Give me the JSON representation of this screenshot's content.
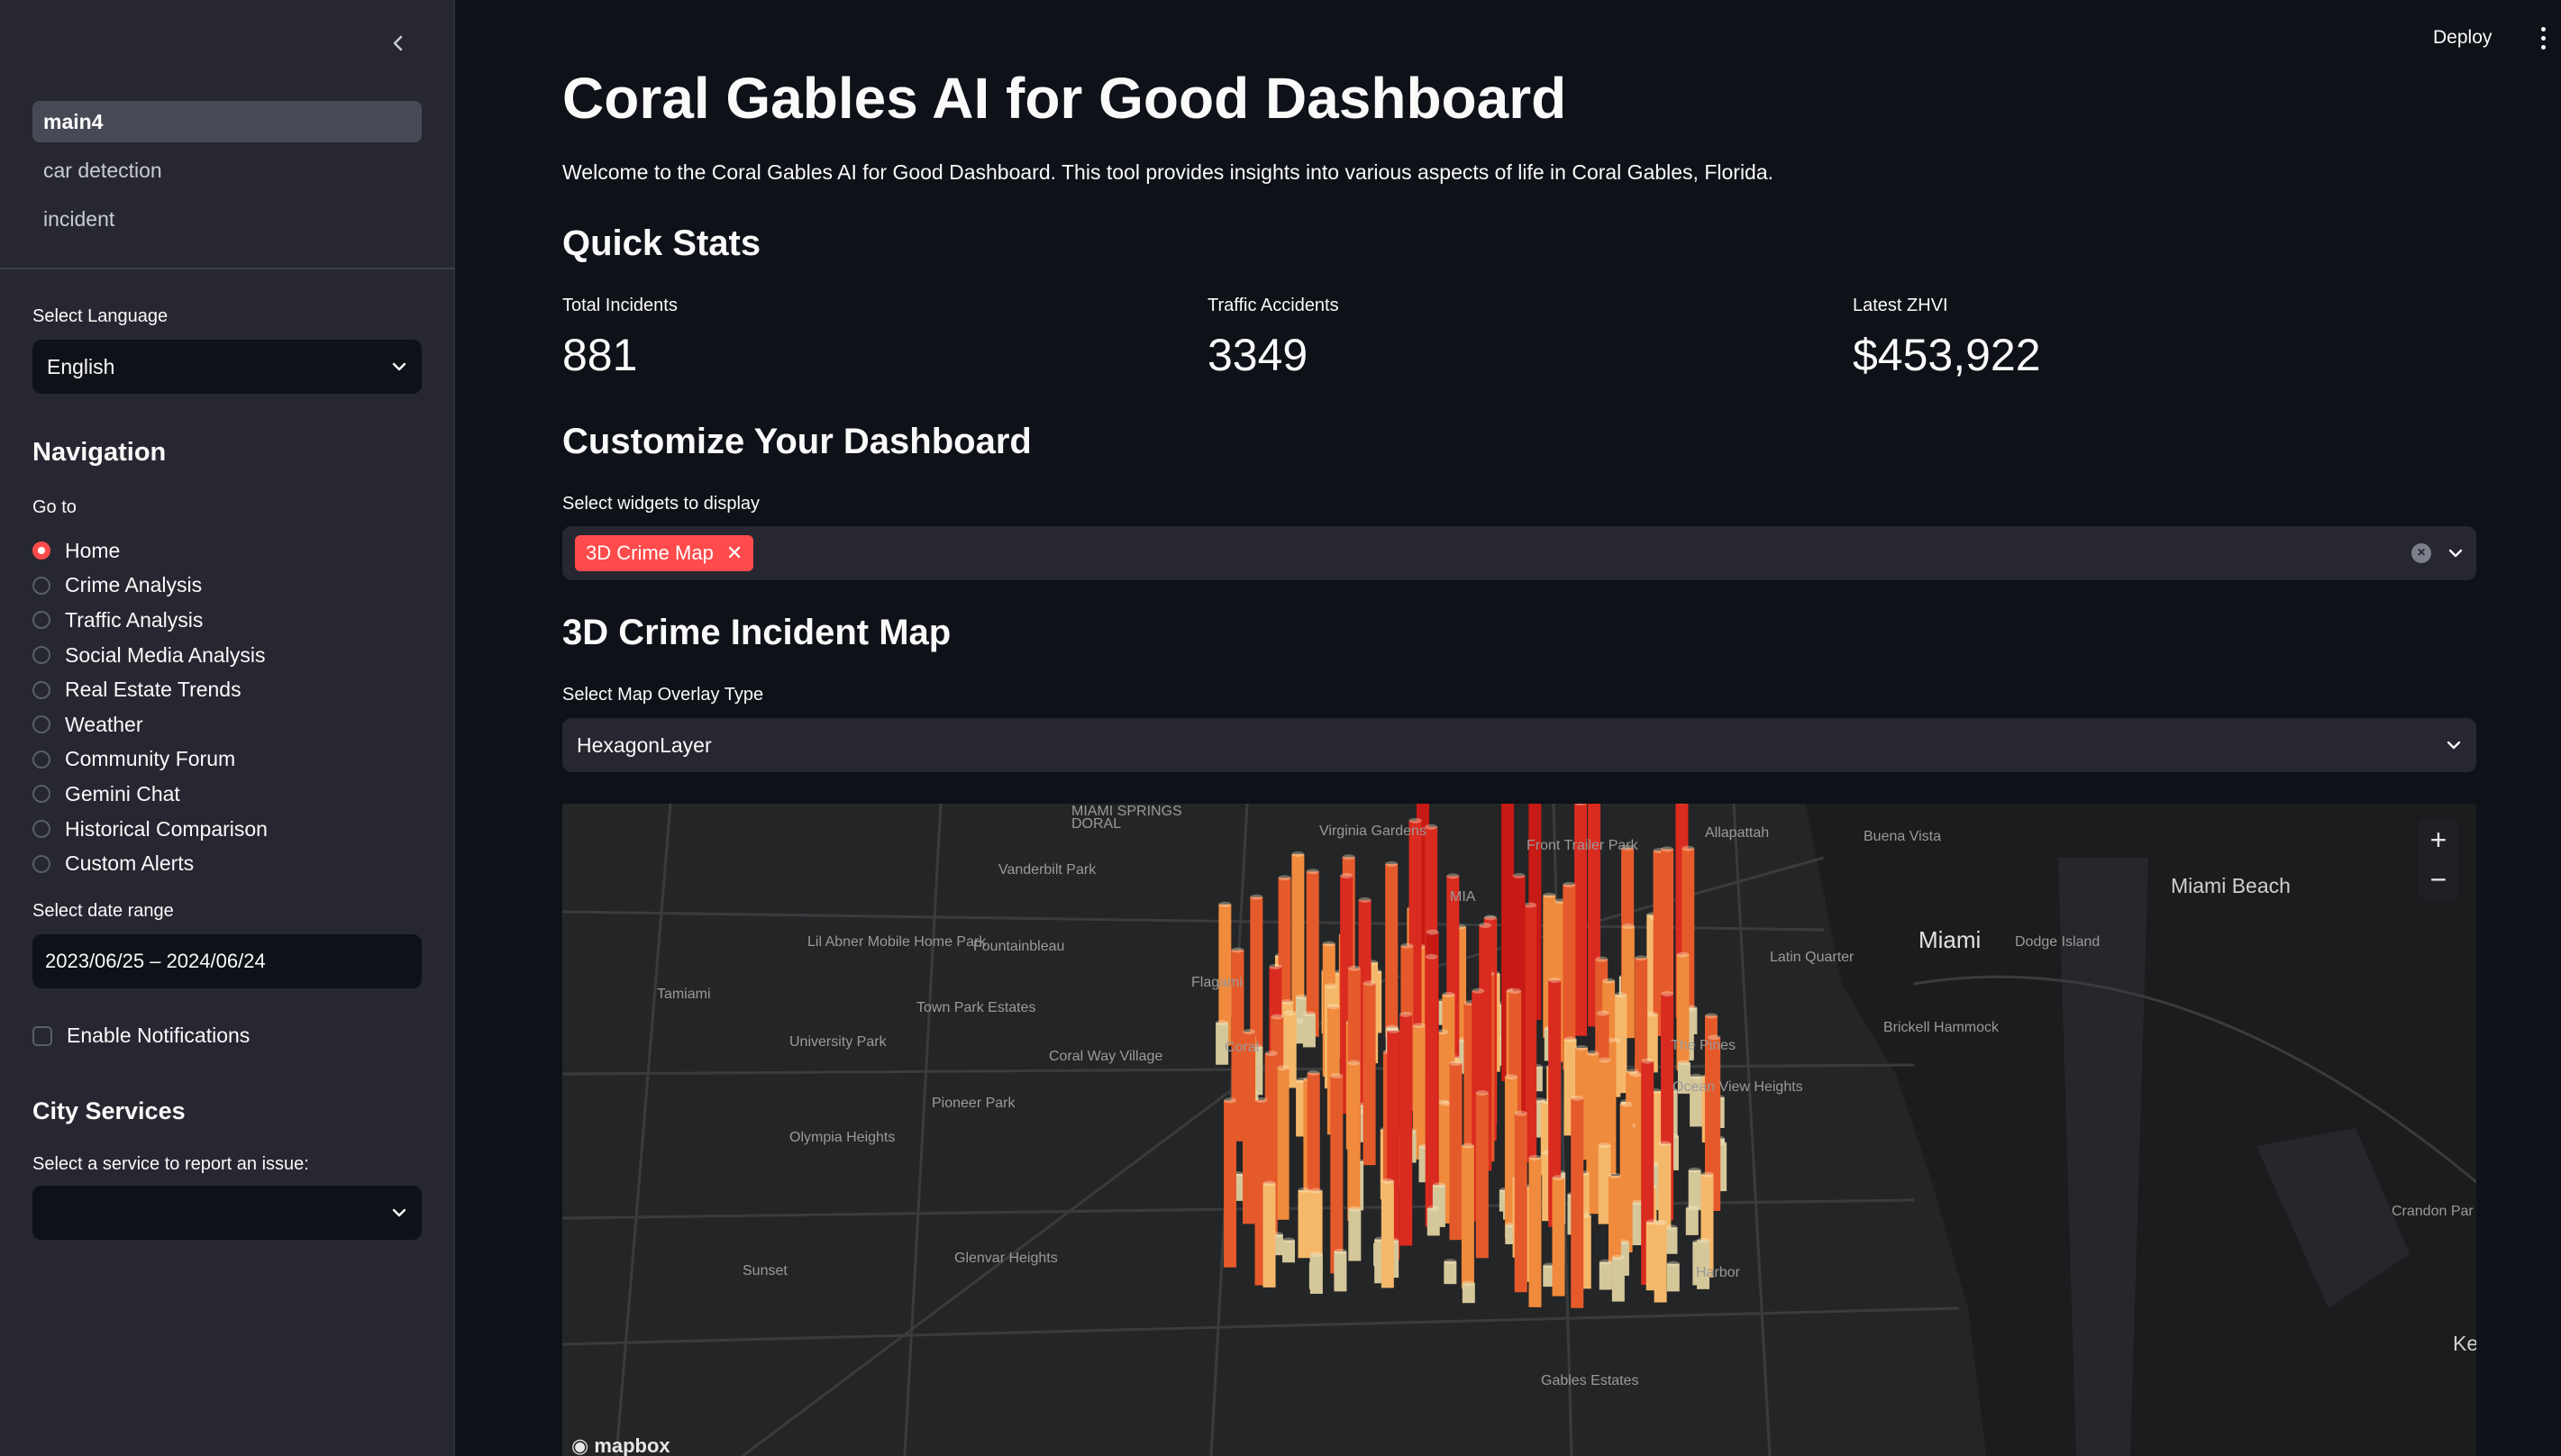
{
  "sidebar": {
    "pages": [
      {
        "label": "main4",
        "active": true
      },
      {
        "label": "car detection",
        "active": false
      },
      {
        "label": "incident",
        "active": false
      }
    ],
    "language": {
      "label": "Select Language",
      "value": "English"
    },
    "navigation": {
      "heading": "Navigation",
      "goto_label": "Go to",
      "options": [
        "Home",
        "Crime Analysis",
        "Traffic Analysis",
        "Social Media Analysis",
        "Real Estate Trends",
        "Weather",
        "Community Forum",
        "Gemini Chat",
        "Historical Comparison",
        "Custom Alerts"
      ],
      "selected": "Home"
    },
    "date_range": {
      "label": "Select date range",
      "value": "2023/06/25 – 2024/06/24"
    },
    "notifications": {
      "label": "Enable Notifications",
      "checked": false
    },
    "city_services": {
      "heading": "City Services",
      "label": "Select a service to report an issue:",
      "value": ""
    }
  },
  "topbar": {
    "deploy_label": "Deploy"
  },
  "main": {
    "title": "Coral Gables AI for Good Dashboard",
    "welcome": "Welcome to the Coral Gables AI for Good Dashboard. This tool provides insights into various aspects of life in Coral Gables, Florida.",
    "quick_stats": {
      "heading": "Quick Stats",
      "stats": [
        {
          "label": "Total Incidents",
          "value": "881"
        },
        {
          "label": "Traffic Accidents",
          "value": "3349"
        },
        {
          "label": "Latest ZHVI",
          "value": "$453,922"
        }
      ]
    },
    "customize": {
      "heading": "Customize Your Dashboard",
      "widgets_label": "Select widgets to display",
      "selected_widgets": [
        "3D Crime Map"
      ]
    },
    "crime_map": {
      "heading": "3D Crime Incident Map",
      "overlay_label": "Select Map Overlay Type",
      "overlay_value": "HexagonLayer",
      "zoom_in": "+",
      "zoom_out": "−",
      "attribution": "mapbox",
      "place_labels": [
        "DORAL",
        "Virginia Gardens",
        "MIAMI SPRINGS",
        "Front Trailer Park",
        "Allapattah",
        "Buena Vista",
        "Vanderbilt Park",
        "MIA",
        "Lil Abner Mobile Home Park",
        "Fountainbleau",
        "Flagami",
        "Latin Quarter",
        "Miami",
        "Dodge Island",
        "Miami Beach",
        "Tamiami",
        "Town Park Estates",
        "Brickell Hammock",
        "University Park",
        "Coral Way Village",
        "Coral",
        "The Pines",
        "Ocean View Heights",
        "Pioneer Park",
        "Olympia Heights",
        "Crandon Par",
        "Sunset",
        "Glenvar Heights",
        "Harbor",
        "Gables Estates",
        "Ke"
      ]
    },
    "colors": {
      "accent": "#ff4b4b",
      "background": "#0e1117",
      "panel": "#262730"
    }
  }
}
